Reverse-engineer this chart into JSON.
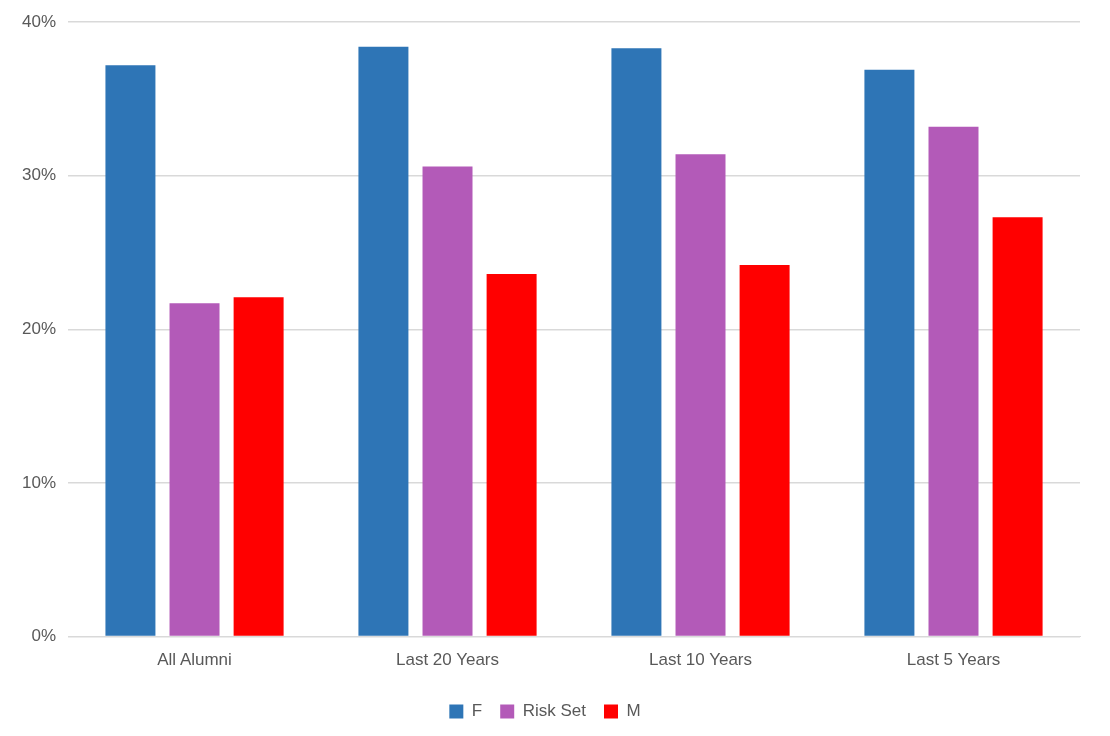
{
  "chart_data": {
    "type": "bar",
    "categories": [
      "All Alumni",
      "Last 20 Years",
      "Last 10 Years",
      "Last 5 Years"
    ],
    "series": [
      {
        "name": "F",
        "color": "#2e75b6",
        "values": [
          37.2,
          38.4,
          38.3,
          36.9
        ]
      },
      {
        "name": "Risk Set",
        "color": "#b35ab8",
        "values": [
          21.7,
          30.6,
          31.4,
          33.2
        ]
      },
      {
        "name": "M",
        "color": "#ff0000",
        "values": [
          22.1,
          23.6,
          24.2,
          27.3
        ]
      }
    ],
    "ylim": [
      0,
      40
    ],
    "yticks": [
      {
        "value": 0,
        "label": "0%"
      },
      {
        "value": 10,
        "label": "10%"
      },
      {
        "value": 20,
        "label": "20%"
      },
      {
        "value": 30,
        "label": "30%"
      },
      {
        "value": 40,
        "label": "40%"
      }
    ],
    "grid": "y",
    "legend": "bottom"
  }
}
